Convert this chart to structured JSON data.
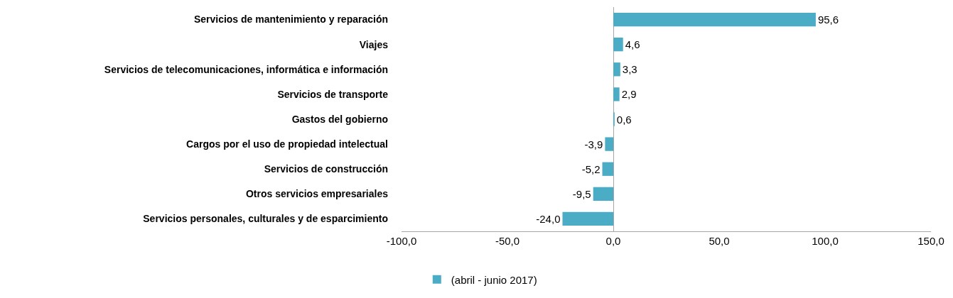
{
  "chart_data": {
    "type": "bar",
    "orientation": "horizontal",
    "categories": [
      "Servicios de mantenimiento y reparación",
      "Viajes",
      "Servicios de telecomunicaciones, informática e información",
      "Servicios de transporte",
      "Gastos del gobierno",
      "Cargos por el uso de propiedad intelectual",
      "Servicios de construcción",
      "Otros servicios empresariales",
      "Servicios personales, culturales y de esparcimiento"
    ],
    "series": [
      {
        "name": "(abril - junio 2017)",
        "color": "#4bacc6",
        "values": [
          95.6,
          4.6,
          3.3,
          2.9,
          0.6,
          -3.9,
          -5.2,
          -9.5,
          -24.0
        ],
        "value_labels": [
          "95,6",
          "4,6",
          "3,3",
          "2,9",
          "0,6",
          "-3,9",
          "-5,2",
          "-9,5",
          "-24,0"
        ]
      }
    ],
    "xlim": [
      -100,
      150
    ],
    "xticks": [
      {
        "value": -100,
        "label": "-100,0"
      },
      {
        "value": -50,
        "label": "-50,0"
      },
      {
        "value": 0,
        "label": "0,0"
      },
      {
        "value": 50,
        "label": "50,0"
      },
      {
        "value": 100,
        "label": "100,0"
      },
      {
        "value": 150,
        "label": "150,0"
      }
    ],
    "legend": "bottom"
  }
}
